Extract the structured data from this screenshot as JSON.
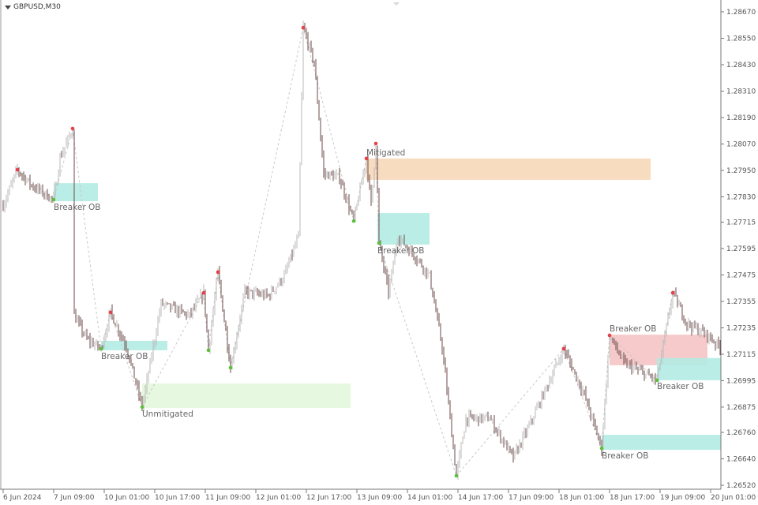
{
  "symbol": "GBPUSD,M30",
  "chart_data": {
    "type": "candlestick",
    "title": "GBPUSD,M30",
    "ylim": [
      1.2652,
      1.2867
    ],
    "grid": false,
    "y_ticks": [
      "1.28670",
      "1.28550",
      "1.28430",
      "1.28310",
      "1.28190",
      "1.28070",
      "1.27950",
      "1.27830",
      "1.27715",
      "1.27595",
      "1.27475",
      "1.27355",
      "1.27235",
      "1.27115",
      "1.26995",
      "1.26875",
      "1.26760",
      "1.26640",
      "1.26520"
    ],
    "x_ticks": [
      "6 Jun 2024",
      "7 Jun 09:00",
      "10 Jun 01:00",
      "10 Jun 17:00",
      "11 Jun 09:00",
      "12 Jun 01:00",
      "12 Jun 17:00",
      "13 Jun 09:00",
      "14 Jun 01:00",
      "14 Jun 17:00",
      "17 Jun 09:00",
      "18 Jun 01:00",
      "18 Jun 17:00",
      "19 Jun 09:00",
      "20 Jun 01:00"
    ],
    "price_path": [
      {
        "t": "6 Jun 17:00",
        "p": 1.27792
      },
      {
        "t": "6 Jun 21:30",
        "p": 1.27953,
        "swing": "high"
      },
      {
        "t": "7 Jun 02:00",
        "p": 1.27882
      },
      {
        "t": "7 Jun 09:00",
        "p": 1.27817,
        "swing": "low"
      },
      {
        "t": "7 Jun 11:00",
        "p": 1.28007
      },
      {
        "t": "7 Jun 15:00",
        "p": 1.2814,
        "swing": "high"
      },
      {
        "t": "7 Jun 15:30",
        "p": 1.2729
      },
      {
        "t": "7 Jun 19:30",
        "p": 1.27183
      },
      {
        "t": "10 Jun 00:00",
        "p": 1.2714,
        "swing": "low"
      },
      {
        "t": "10 Jun 03:00",
        "p": 1.27305,
        "swing": "high"
      },
      {
        "t": "10 Jun 08:00",
        "p": 1.2715
      },
      {
        "t": "10 Jun 13:00",
        "p": 1.26875,
        "swing": "low"
      },
      {
        "t": "10 Jun 19:00",
        "p": 1.27344
      },
      {
        "t": "11 Jun 04:00",
        "p": 1.2729
      },
      {
        "t": "11 Jun 08:30",
        "p": 1.27394,
        "swing": "high"
      },
      {
        "t": "11 Jun 10:00",
        "p": 1.27133,
        "swing": "low"
      },
      {
        "t": "11 Jun 13:00",
        "p": 1.27488,
        "swing": "high"
      },
      {
        "t": "11 Jun 17:00",
        "p": 1.27054,
        "swing": "low"
      },
      {
        "t": "11 Jun 21:30",
        "p": 1.27398
      },
      {
        "t": "12 Jun 05:00",
        "p": 1.2738
      },
      {
        "t": "12 Jun 10:00",
        "p": 1.2747
      },
      {
        "t": "12 Jun 14:30",
        "p": 1.27649
      },
      {
        "t": "12 Jun 16:00",
        "p": 1.28598,
        "swing": "high"
      },
      {
        "t": "12 Jun 19:30",
        "p": 1.28437
      },
      {
        "t": "12 Jun 22:30",
        "p": 1.27935
      },
      {
        "t": "13 Jun 03:30",
        "p": 1.27917
      },
      {
        "t": "13 Jun 08:00",
        "p": 1.2772,
        "swing": "low"
      },
      {
        "t": "13 Jun 12:00",
        "p": 1.28004,
        "swing": "high"
      },
      {
        "t": "13 Jun 13:30",
        "p": 1.27792
      },
      {
        "t": "13 Jun 15:00",
        "p": 1.28072,
        "swing": "high"
      },
      {
        "t": "13 Jun 16:00",
        "p": 1.2762,
        "swing": "low"
      },
      {
        "t": "13 Jun 19:00",
        "p": 1.27398
      },
      {
        "t": "13 Jun 22:00",
        "p": 1.27649
      },
      {
        "t": "14 Jun 04:30",
        "p": 1.27541
      },
      {
        "t": "14 Jun 08:00",
        "p": 1.2747
      },
      {
        "t": "14 Jun 12:00",
        "p": 1.27147
      },
      {
        "t": "14 Jun 16:30",
        "p": 1.26563,
        "swing": "low"
      },
      {
        "t": "14 Jun 19:30",
        "p": 1.26824
      },
      {
        "t": "17 Jun 03:00",
        "p": 1.26824
      },
      {
        "t": "17 Jun 10:30",
        "p": 1.26645
      },
      {
        "t": "17 Jun 15:30",
        "p": 1.26789
      },
      {
        "t": "18 Jun 02:30",
        "p": 1.2714,
        "swing": "high"
      },
      {
        "t": "18 Jun 09:00",
        "p": 1.26932
      },
      {
        "t": "18 Jun 14:30",
        "p": 1.26688,
        "swing": "low"
      },
      {
        "t": "18 Jun 17:00",
        "p": 1.27201,
        "swing": "high"
      },
      {
        "t": "18 Jun 21:30",
        "p": 1.27075
      },
      {
        "t": "19 Jun 08:00",
        "p": 1.26997,
        "swing": "low"
      },
      {
        "t": "19 Jun 13:00",
        "p": 1.27394,
        "swing": "high"
      },
      {
        "t": "19 Jun 17:30",
        "p": 1.27255
      },
      {
        "t": "20 Jun 00:00",
        "p": 1.27201
      },
      {
        "t": "20 Jun 04:00",
        "p": 1.27147
      }
    ],
    "zones": [
      {
        "label": "Breaker OB",
        "from": "7 Jun 09:00",
        "to": "7 Jun 23:00",
        "top": 1.27892,
        "bottom": 1.2781,
        "color": "#b3ebe3",
        "label_pos": "below"
      },
      {
        "label": "Breaker OB",
        "from": "10 Jun 00:00",
        "to": "10 Jun 21:00",
        "top": 1.27176,
        "bottom": 1.27133,
        "color": "#b3ebe3",
        "label_pos": "below"
      },
      {
        "label": "Unmitigated",
        "from": "10 Jun 13:00",
        "to": "13 Jun 07:00",
        "top": 1.26982,
        "bottom": 1.26871,
        "color": "#e3f7dc",
        "label_pos": "below"
      },
      {
        "label": "Mitigated",
        "from": "13 Jun 12:00",
        "to": "19 Jun 06:00",
        "top": 1.28004,
        "bottom": 1.27907,
        "color": "#f6d8b8",
        "label_pos": "above"
      },
      {
        "label": "Breaker OB",
        "from": "13 Jun 15:30",
        "to": "14 Jun 08:00",
        "top": 1.27756,
        "bottom": 1.27613,
        "color": "#b3ebe3",
        "label_pos": "below"
      },
      {
        "label": "Breaker OB",
        "from": "18 Jun 17:00",
        "to": "20 Jun 00:00",
        "top": 1.27204,
        "bottom": 1.27065,
        "color": "#f5c4c4",
        "label_pos": "above"
      },
      {
        "label": "Breaker OB",
        "from": "19 Jun 08:00",
        "to": "20 Jun 05:00",
        "top": 1.27098,
        "bottom": 1.26997,
        "color": "#b3ebe3",
        "label_pos": "below"
      },
      {
        "label": "Breaker OB",
        "from": "18 Jun 14:30",
        "to": "20 Jun 05:00",
        "top": 1.26749,
        "bottom": 1.26681,
        "color": "#b3ebe3",
        "label_pos": "below"
      }
    ],
    "colors": {
      "bull": "#b9b9b9",
      "bear": "#6e4a4a",
      "swing_high": "#e8404a",
      "swing_low": "#5cbf3a",
      "zigzag": "#c8c8c8"
    }
  }
}
